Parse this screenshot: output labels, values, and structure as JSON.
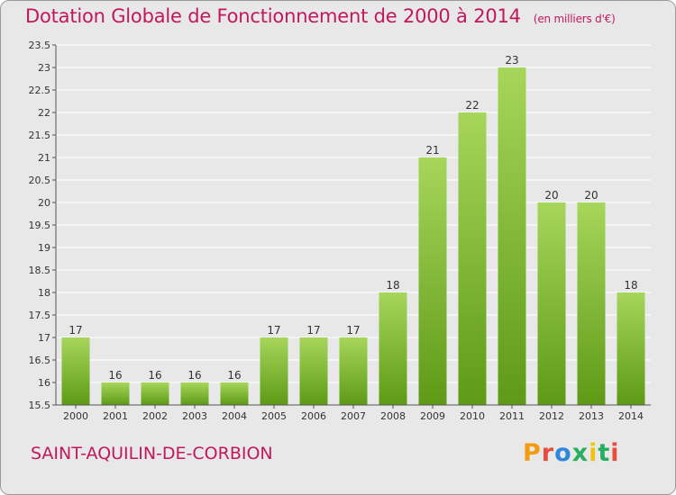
{
  "title": "Dotation Globale de Fonctionnement de 2000 à 2014",
  "unit_label": "(en milliers d'€)",
  "commune": "SAINT-AQUILIN-DE-CORBION",
  "logo": {
    "text": "Proxiti",
    "letter_colors": [
      "#f39c12",
      "#e74c3c",
      "#2e86de",
      "#27ae60",
      "#f1c40f",
      "#27ae60",
      "#e74c3c"
    ]
  },
  "colors": {
    "title": "#c2185b",
    "bar_light": "#a6d65a",
    "bar_dark": "#5e9a16",
    "grid": "#ffffff",
    "background": "#e8e8e8"
  },
  "chart_data": {
    "type": "bar",
    "title": "Dotation Globale de Fonctionnement de 2000 à 2014",
    "categories": [
      "2000",
      "2001",
      "2002",
      "2003",
      "2004",
      "2005",
      "2006",
      "2007",
      "2008",
      "2009",
      "2010",
      "2011",
      "2012",
      "2013",
      "2014"
    ],
    "values": [
      17,
      16,
      16,
      16,
      16,
      17,
      17,
      17,
      18,
      21,
      22,
      23,
      20,
      20,
      18
    ],
    "ylim": [
      15.5,
      23.5
    ],
    "yticks": [
      "15.5",
      "16",
      "16.5",
      "17",
      "17.5",
      "18",
      "18.5",
      "19",
      "19.5",
      "20",
      "20.5",
      "21",
      "21.5",
      "22",
      "22.5",
      "23",
      "23.5"
    ],
    "grid": true,
    "data_labels": true
  }
}
